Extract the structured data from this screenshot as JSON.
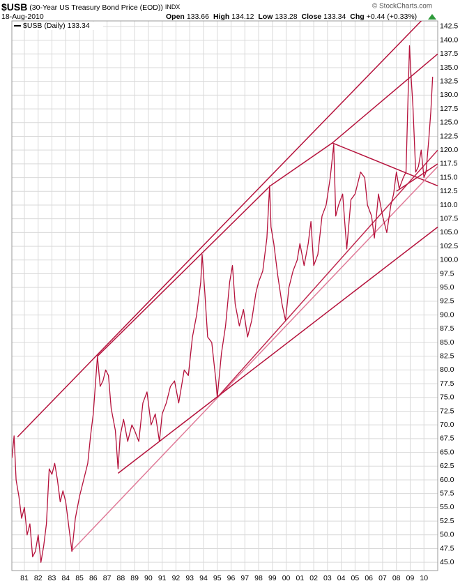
{
  "chart_data": {
    "type": "line",
    "symbol": "$USB",
    "title": "(30-Year US Treasury Bond Price (EOD))",
    "exchange": "INDX",
    "date": "18-Aug-2010",
    "source": "© StockCharts.com",
    "quote": [
      {
        "label": "Open",
        "value": 133.66
      },
      {
        "label": "High",
        "value": 134.12
      },
      {
        "label": "Low",
        "value": 133.28
      },
      {
        "label": "Close",
        "value": 133.34
      },
      {
        "label": "Chg",
        "value": "+0.44"
      }
    ],
    "change_pct": "(+0.33%)",
    "last_value": 133.34,
    "grid": true,
    "xlim": [
      1980.09,
      2011.0
    ],
    "ylim": [
      43.5,
      143.5
    ],
    "xticks": [
      {
        "value": 1981,
        "label": "81"
      },
      {
        "value": 1982,
        "label": "82"
      },
      {
        "value": 1983,
        "label": "83"
      },
      {
        "value": 1984,
        "label": "84"
      },
      {
        "value": 1985,
        "label": "85"
      },
      {
        "value": 1986,
        "label": "86"
      },
      {
        "value": 1987,
        "label": "87"
      },
      {
        "value": 1988,
        "label": "88"
      },
      {
        "value": 1989,
        "label": "89"
      },
      {
        "value": 1990,
        "label": "90"
      },
      {
        "value": 1991,
        "label": "91"
      },
      {
        "value": 1992,
        "label": "92"
      },
      {
        "value": 1993,
        "label": "93"
      },
      {
        "value": 1994,
        "label": "94"
      },
      {
        "value": 1995,
        "label": "95"
      },
      {
        "value": 1996,
        "label": "96"
      },
      {
        "value": 1997,
        "label": "97"
      },
      {
        "value": 1998,
        "label": "98"
      },
      {
        "value": 1999,
        "label": "99"
      },
      {
        "value": 2000,
        "label": "00"
      },
      {
        "value": 2001,
        "label": "01"
      },
      {
        "value": 2002,
        "label": "02"
      },
      {
        "value": 2003,
        "label": "03"
      },
      {
        "value": 2004,
        "label": "04"
      },
      {
        "value": 2005,
        "label": "05"
      },
      {
        "value": 2006,
        "label": "06"
      },
      {
        "value": 2007,
        "label": "07"
      },
      {
        "value": 2008,
        "label": "08"
      },
      {
        "value": 2009,
        "label": "09"
      },
      {
        "value": 2010,
        "label": "10"
      }
    ],
    "yticks": [
      {
        "value": 45,
        "label": "45.0"
      },
      {
        "value": 47.5,
        "label": "47.5"
      },
      {
        "value": 50,
        "label": "50.0"
      },
      {
        "value": 52.5,
        "label": "52.5"
      },
      {
        "value": 55,
        "label": "55.0"
      },
      {
        "value": 57.5,
        "label": "57.5"
      },
      {
        "value": 60,
        "label": "60.0"
      },
      {
        "value": 62.5,
        "label": "62.5"
      },
      {
        "value": 65,
        "label": "65.0"
      },
      {
        "value": 67.5,
        "label": "67.5"
      },
      {
        "value": 70,
        "label": "70.0"
      },
      {
        "value": 72.5,
        "label": "72.5"
      },
      {
        "value": 75,
        "label": "75.0"
      },
      {
        "value": 77.5,
        "label": "77.5"
      },
      {
        "value": 80,
        "label": "80.0"
      },
      {
        "value": 82.5,
        "label": "82.5"
      },
      {
        "value": 85,
        "label": "85.0"
      },
      {
        "value": 87.5,
        "label": "87.5"
      },
      {
        "value": 90,
        "label": "90.0"
      },
      {
        "value": 92.5,
        "label": "92.5"
      },
      {
        "value": 95,
        "label": "95.0"
      },
      {
        "value": 97.5,
        "label": "97.5"
      },
      {
        "value": 100,
        "label": "100.0"
      },
      {
        "value": 102.5,
        "label": "102.5"
      },
      {
        "value": 105,
        "label": "105.0"
      },
      {
        "value": 107.5,
        "label": "107.5"
      },
      {
        "value": 110,
        "label": "110.0"
      },
      {
        "value": 112.5,
        "label": "112.5"
      },
      {
        "value": 115,
        "label": "115.0"
      },
      {
        "value": 117.5,
        "label": "117.5"
      },
      {
        "value": 120,
        "label": "120.0"
      },
      {
        "value": 122.5,
        "label": "122.5"
      },
      {
        "value": 125,
        "label": "125.0"
      },
      {
        "value": 127.5,
        "label": "127.5"
      },
      {
        "value": 130,
        "label": "130.0"
      },
      {
        "value": 132.5,
        "label": "132.5"
      },
      {
        "value": 135,
        "label": "135.0"
      },
      {
        "value": 137.5,
        "label": "137.5"
      },
      {
        "value": 140,
        "label": "140.0"
      },
      {
        "value": 142.5,
        "label": "142.5"
      }
    ],
    "x": [
      1980.1,
      1980.25,
      1980.4,
      1980.6,
      1980.8,
      1981.0,
      1981.2,
      1981.4,
      1981.6,
      1981.8,
      1982.0,
      1982.2,
      1982.4,
      1982.6,
      1982.8,
      1983.0,
      1983.2,
      1983.4,
      1983.6,
      1983.8,
      1984.0,
      1984.3,
      1984.45,
      1984.7,
      1985.0,
      1985.3,
      1985.6,
      1985.8,
      1986.0,
      1986.3,
      1986.5,
      1986.7,
      1986.9,
      1987.1,
      1987.3,
      1987.6,
      1987.8,
      1987.95,
      1988.2,
      1988.5,
      1988.8,
      1989.0,
      1989.3,
      1989.6,
      1989.9,
      1990.2,
      1990.5,
      1990.8,
      1991.0,
      1991.3,
      1991.6,
      1991.9,
      1992.2,
      1992.6,
      1992.9,
      1993.2,
      1993.5,
      1993.8,
      1993.9,
      1994.1,
      1994.3,
      1994.6,
      1994.9,
      1995.0,
      1995.3,
      1995.6,
      1995.9,
      1996.1,
      1996.3,
      1996.6,
      1996.9,
      1997.2,
      1997.5,
      1997.8,
      1998.0,
      1998.3,
      1998.6,
      1998.8,
      1998.9,
      1999.1,
      1999.4,
      1999.7,
      1999.95,
      2000.2,
      2000.5,
      2000.8,
      2001.0,
      2001.3,
      2001.6,
      2001.8,
      2002.0,
      2002.3,
      2002.6,
      2002.9,
      2003.2,
      2003.45,
      2003.6,
      2003.8,
      2004.1,
      2004.4,
      2004.7,
      2005.0,
      2005.4,
      2005.7,
      2005.9,
      2006.2,
      2006.4,
      2006.7,
      2007.0,
      2007.3,
      2007.6,
      2007.8,
      2008.0,
      2008.2,
      2008.5,
      2008.7,
      2008.85,
      2008.95,
      2009.05,
      2009.2,
      2009.4,
      2009.6,
      2009.8,
      2010.0,
      2010.15,
      2010.35,
      2010.5,
      2010.63
    ],
    "series": [
      {
        "name": "$USB (Daily)",
        "color": "#b5123c",
        "values": [
          64,
          68,
          60,
          57,
          53,
          55,
          50,
          52,
          46,
          47,
          50,
          45,
          48,
          52,
          62,
          61,
          63,
          60,
          56,
          58,
          56,
          50,
          47,
          53,
          57,
          60,
          63,
          68,
          72,
          82.5,
          77,
          78,
          80,
          79,
          73,
          69,
          62,
          68,
          71,
          67,
          70,
          69,
          67,
          74,
          76,
          70,
          72,
          67,
          72,
          74,
          77,
          78,
          74,
          80,
          79,
          86,
          90,
          96,
          101,
          94,
          86,
          85,
          78,
          75,
          83,
          88,
          96,
          99,
          92,
          88,
          91,
          86,
          89,
          94,
          96,
          98,
          104,
          113.5,
          106,
          103,
          97,
          92,
          89,
          95,
          98,
          100,
          103,
          99,
          103,
          107,
          99,
          101,
          108,
          110,
          115,
          121,
          108,
          110,
          112,
          102,
          111,
          112,
          116,
          115,
          110,
          108,
          104,
          112,
          108,
          105,
          110,
          112,
          116,
          113,
          115,
          116,
          130,
          139,
          134,
          128,
          116,
          117,
          120,
          115,
          116,
          122,
          127,
          133.34
        ]
      }
    ],
    "trendlines": [
      {
        "color": "#b5123c",
        "x": [
          1980.5,
          2011.0
        ],
        "y": [
          67.8,
          146.6
        ]
      },
      {
        "color": "#b5123c",
        "x": [
          1986.3,
          1998.85
        ],
        "y": [
          82.5,
          113.5
        ]
      },
      {
        "color": "#b5123c",
        "x": [
          1998.85,
          2003.35,
          2011.0
        ],
        "y": [
          113.5,
          121.3,
          137.5
        ]
      },
      {
        "color": "#b5123c",
        "x": [
          2003.35,
          2011.0
        ],
        "y": [
          121.3,
          113.5
        ]
      },
      {
        "color": "#b5123c",
        "x": [
          2008.0,
          2011.0
        ],
        "y": [
          112.5,
          117.5
        ]
      },
      {
        "color": "#e07a98",
        "x": [
          1984.4,
          2011.0
        ],
        "y": [
          47,
          117
        ]
      },
      {
        "color": "#b5123c",
        "x": [
          1987.8,
          2011.0
        ],
        "y": [
          61.2,
          106
        ]
      },
      {
        "color": "#c0284f",
        "x": [
          1995.0,
          2011.0
        ],
        "y": [
          75,
          120
        ]
      }
    ]
  }
}
